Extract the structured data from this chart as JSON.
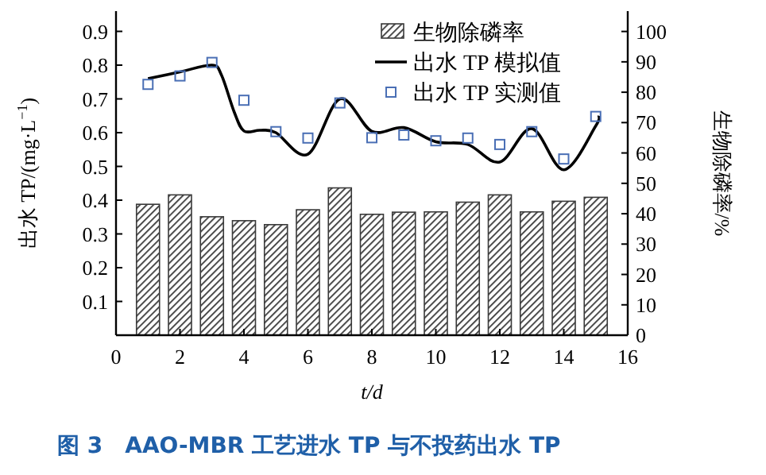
{
  "chart_data": {
    "type": "bar",
    "annotations": [
      "图 3　AAO-MBR 工艺进水 TP 与不投药出水 TP"
    ],
    "xlabel": "t/d",
    "ylabel": "出水 TP/(mg·L$^{−1}$)",
    "y2label": "生物除磷率/%",
    "xlim": [
      0,
      16
    ],
    "xticks": [
      0,
      2,
      4,
      6,
      8,
      10,
      12,
      14,
      16
    ],
    "ylim": [
      0,
      0.96
    ],
    "yticks": [
      0.1,
      0.2,
      0.3,
      0.4,
      0.5,
      0.6,
      0.7,
      0.8,
      0.9
    ],
    "y2lim": [
      0,
      106.7
    ],
    "y2ticks": [
      0,
      10,
      20,
      30,
      40,
      50,
      60,
      70,
      80,
      90,
      100
    ],
    "grid": false,
    "legend": "top right",
    "series": [
      {
        "name": "生物除磷率",
        "axis": "y2",
        "color": "#3a3a3a",
        "x": [
          1,
          2,
          3,
          4,
          5,
          6,
          7,
          8,
          9,
          10,
          11,
          12,
          13,
          14,
          15
        ],
        "values": [
          43.1,
          46.2,
          39.0,
          37.7,
          36.4,
          41.3,
          48.5,
          39.8,
          40.5,
          40.6,
          43.8,
          46.2,
          40.6,
          44.1,
          45.4
        ]
      },
      {
        "name": "出水 TP 模拟值",
        "type": "line",
        "color": "#000000",
        "x": [
          1,
          2,
          3,
          3.3,
          3.7,
          4,
          4.5,
          5,
          6,
          7,
          8,
          9,
          10,
          11,
          12,
          13,
          14,
          15,
          15.1
        ],
        "values": [
          0.76,
          0.78,
          0.8,
          0.77,
          0.66,
          0.605,
          0.607,
          0.6,
          0.536,
          0.7,
          0.604,
          0.615,
          0.573,
          0.565,
          0.513,
          0.612,
          0.49,
          0.62,
          0.65
        ]
      },
      {
        "name": "出水 TP 实测值",
        "type": "scatter",
        "marker": "square",
        "color": "#4a6fb5",
        "x": [
          1,
          2,
          3,
          4,
          5,
          6,
          7,
          8,
          9,
          10,
          11,
          12,
          13,
          14,
          15
        ],
        "values": [
          0.743,
          0.768,
          0.808,
          0.696,
          0.603,
          0.584,
          0.688,
          0.585,
          0.593,
          0.576,
          0.584,
          0.565,
          0.603,
          0.522,
          0.648
        ]
      }
    ]
  }
}
